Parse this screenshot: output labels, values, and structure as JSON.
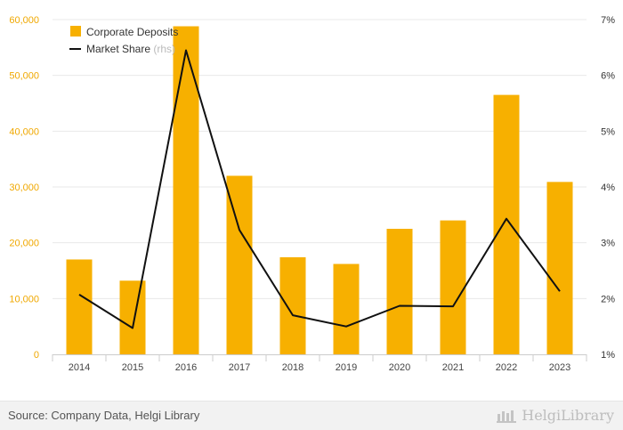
{
  "chart_data": {
    "type": "bar",
    "categories": [
      "2014",
      "2015",
      "2016",
      "2017",
      "2018",
      "2019",
      "2020",
      "2021",
      "2022",
      "2023"
    ],
    "series": [
      {
        "name": "Corporate Deposits",
        "type": "bar",
        "axis": "left",
        "values": [
          17000,
          13200,
          58800,
          32000,
          17400,
          16200,
          22500,
          24000,
          46500,
          30900
        ]
      },
      {
        "name": "Market Share",
        "type": "line",
        "axis": "right",
        "values": [
          2.07,
          1.47,
          6.45,
          3.23,
          1.7,
          1.5,
          1.87,
          1.86,
          3.43,
          2.13
        ]
      }
    ],
    "legend_suffix": "(rhs)",
    "left_axis": {
      "min": 0,
      "max": 60000,
      "ticks": [
        "0",
        "10,000",
        "20,000",
        "30,000",
        "40,000",
        "50,000",
        "60,000"
      ]
    },
    "right_axis": {
      "min": 1,
      "max": 7,
      "ticks": [
        "1%",
        "2%",
        "3%",
        "4%",
        "5%",
        "6%",
        "7%"
      ]
    },
    "legend_position": "top-left",
    "grid": true,
    "colors": {
      "bar": "#f7b000",
      "line": "#111111",
      "left_tick": "#f0a800",
      "grid": "#e8e8e8"
    }
  },
  "footer": {
    "source": "Source: Company Data, Helgi Library",
    "brand": "HelgiLibrary"
  }
}
